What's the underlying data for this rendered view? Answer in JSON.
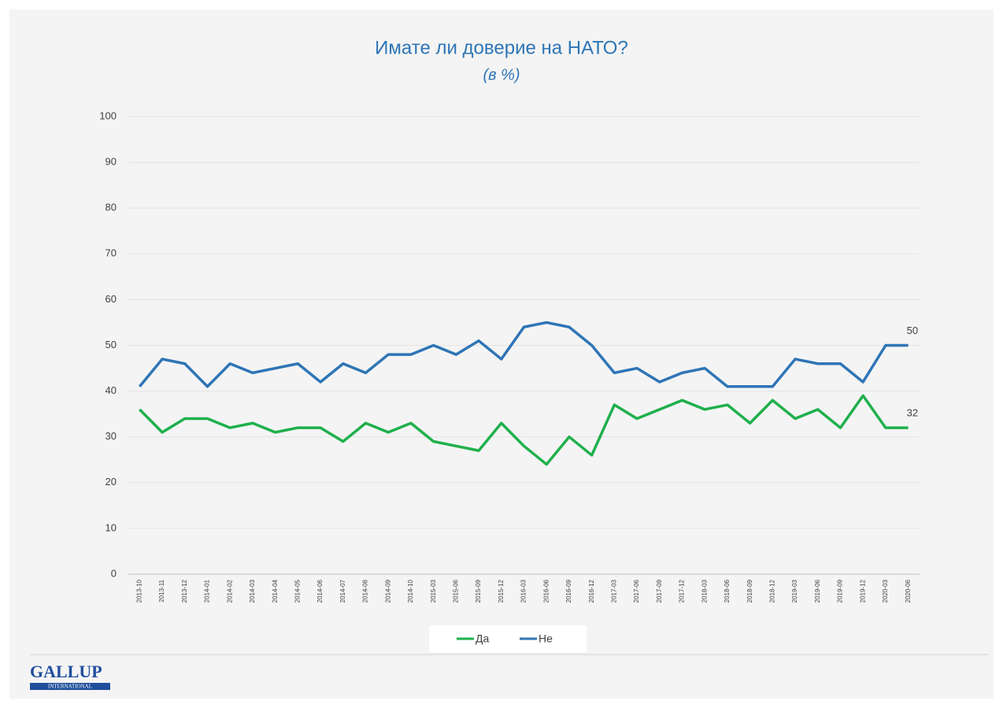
{
  "chart_data": {
    "type": "line",
    "title": "Имате ли доверие на НАТО?",
    "subtitle": "(в %)",
    "categories": [
      "2013-10",
      "2013-11",
      "2013-12",
      "2014-01",
      "2014-02",
      "2014-03",
      "2014-04",
      "2014-05",
      "2014-06",
      "2014-07",
      "2014-08",
      "2014-09",
      "2014-10",
      "2015-03",
      "2015-06",
      "2015-09",
      "2015-12",
      "2016-03",
      "2016-06",
      "2016-09",
      "2016-12",
      "2017-03",
      "2017-06",
      "2017-09",
      "2017-12",
      "2018-03",
      "2018-06",
      "2018-09",
      "2018-12",
      "2019-03",
      "2019-06",
      "2019-09",
      "2019-12",
      "2020-03",
      "2020-06"
    ],
    "series": [
      {
        "name": "Да",
        "color": "#1fb04c",
        "values": [
          36,
          31,
          34,
          34,
          32,
          33,
          31,
          32,
          32,
          29,
          33,
          31,
          33,
          29,
          28,
          27,
          33,
          28,
          24,
          30,
          26,
          37,
          34,
          36,
          38,
          36,
          37,
          33,
          38,
          34,
          36,
          32,
          39,
          32,
          32
        ]
      },
      {
        "name": "Не",
        "color": "#2e75b6",
        "values": [
          41,
          47,
          46,
          41,
          46,
          44,
          45,
          46,
          42,
          46,
          44,
          48,
          48,
          50,
          48,
          51,
          47,
          54,
          55,
          54,
          50,
          44,
          45,
          42,
          44,
          45,
          41,
          41,
          41,
          47,
          46,
          46,
          42,
          50,
          50
        ]
      }
    ],
    "ylim": [
      0,
      100
    ],
    "yticks": [
      0,
      10,
      20,
      30,
      40,
      50,
      60,
      70,
      80,
      90,
      100
    ],
    "grid": true,
    "legend": "bottom"
  },
  "logo": {
    "name": "GALLUP",
    "sub": "INTERNATIONAL"
  }
}
